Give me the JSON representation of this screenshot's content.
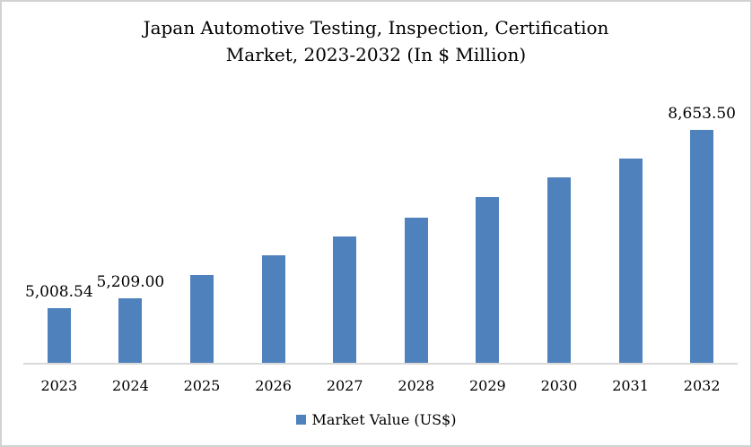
{
  "frame": {
    "background": "#ffffff",
    "border_color": "#d2d2d2"
  },
  "chart_data": {
    "type": "bar",
    "title": "Japan Automotive Testing, Inspection, Certification\nMarket, 2023-2032 (In $ Million)",
    "categories": [
      "2023",
      "2024",
      "2025",
      "2026",
      "2027",
      "2028",
      "2029",
      "2030",
      "2031",
      "2032"
    ],
    "series": [
      {
        "name": "Market Value (US$)",
        "color": "#4f81bd",
        "values": [
          5008.54,
          5209.0,
          5685,
          6085,
          6465,
          6860,
          7280,
          7670,
          8070,
          8653.5
        ]
      }
    ],
    "data_labels": [
      "5,008.54",
      "5,209.00",
      "",
      "",
      "",
      "",
      "",
      "",
      "",
      "8,653.50"
    ],
    "labeled_indices": [
      0,
      1,
      9
    ],
    "estimated_indices": [
      2,
      3,
      4,
      5,
      6,
      7,
      8
    ],
    "ylim": [
      3900,
      9100
    ],
    "xlabel": "",
    "ylabel": "",
    "grid": false,
    "y_axis_visible": false,
    "x_axis_line_color": "#d9d9d9",
    "legend": {
      "position": "bottom",
      "label": "Market Value (US$)",
      "swatch_color": "#4f81bd"
    }
  }
}
